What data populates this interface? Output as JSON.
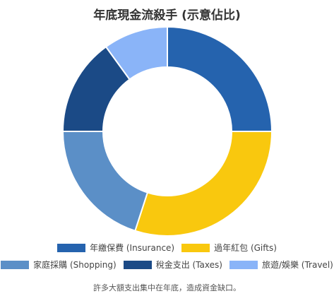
{
  "chart_data": {
    "type": "pie",
    "variant": "doughnut",
    "title": "年底現金流殺手 (示意佔比)",
    "categories": [
      "年繳保費 (Insurance)",
      "過年紅包 (Gifts)",
      "家庭採購 (Shopping)",
      "稅金支出 (Taxes)",
      "旅遊/娛樂 (Travel)"
    ],
    "values": [
      25,
      30,
      20,
      15,
      10
    ],
    "colors": [
      "#2563ae",
      "#f9c80e",
      "#5b8fc7",
      "#1b4a86",
      "#8ab4f8"
    ],
    "legend_position": "bottom"
  },
  "caption": "許多大額支出集中在年底，造成資金缺口。"
}
